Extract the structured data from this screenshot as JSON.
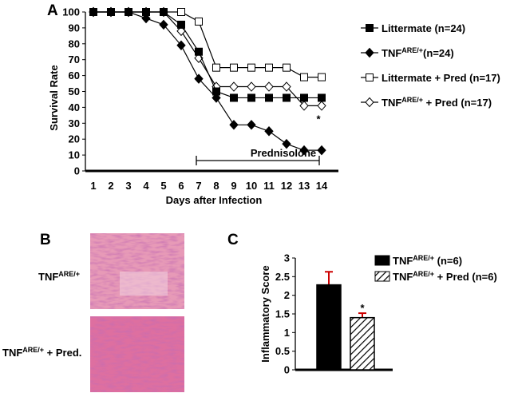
{
  "panels": {
    "a": "A",
    "b": "B",
    "c": "C"
  },
  "histology": {
    "label_top": "TNF",
    "label_top_sup": "ARE/+",
    "label_bottom": "TNF",
    "label_bottom_sup": "ARE/+",
    "label_bottom_suffix": " + Pred."
  },
  "chart_data": [
    {
      "type": "line",
      "title": "",
      "xlabel": "Days after Infection",
      "ylabel": "Survival Rate",
      "xlim": [
        1,
        14
      ],
      "ylim": [
        0,
        100
      ],
      "x": [
        1,
        2,
        3,
        4,
        5,
        6,
        7,
        8,
        9,
        10,
        11,
        12,
        13,
        14
      ],
      "x_ticks": [
        "1",
        "2",
        "3",
        "4",
        "5",
        "6",
        "7",
        "8",
        "9",
        "10",
        "11",
        "12",
        "13",
        "14"
      ],
      "y_ticks": [
        "0",
        "10",
        "20",
        "30",
        "40",
        "50",
        "60",
        "70",
        "80",
        "90",
        "100"
      ],
      "legend_position": "right",
      "series": [
        {
          "name": "Littermate (n=24)",
          "name_main": "Littermate (n=24)",
          "name_sup": "",
          "name_rest": "",
          "marker": "filled-square",
          "values": [
            100,
            100,
            100,
            100,
            100,
            92,
            75,
            50,
            46,
            46,
            46,
            46,
            46,
            46
          ]
        },
        {
          "name": "TNFARE/+(n=24)",
          "name_main": "TNF",
          "name_sup": "ARE/+",
          "name_rest": "(n=24)",
          "marker": "filled-diamond",
          "values": [
            100,
            100,
            100,
            96,
            92,
            79,
            58,
            46,
            29,
            29,
            25,
            17,
            13,
            13
          ]
        },
        {
          "name": "Littermate + Pred (n=17)",
          "name_main": "Littermate + Pred (n=17)",
          "name_sup": "",
          "name_rest": "",
          "marker": "open-square",
          "values": [
            100,
            100,
            100,
            100,
            100,
            100,
            94,
            65,
            65,
            65,
            65,
            65,
            59,
            59
          ]
        },
        {
          "name": "TNFARE/+ + Pred (n=17)",
          "name_main": "TNF",
          "name_sup": "ARE/+",
          "name_rest": " + Pred (n=17)",
          "marker": "open-diamond",
          "values": [
            100,
            100,
            100,
            100,
            100,
            88,
            71,
            53,
            53,
            53,
            53,
            53,
            41,
            41
          ]
        }
      ],
      "annotations": [
        {
          "text": "Prednisolone",
          "from_x": 7,
          "to_x": 14
        },
        {
          "text": "*",
          "near_x": 14,
          "near_y": 35
        }
      ]
    },
    {
      "type": "bar",
      "title": "",
      "xlabel": "",
      "ylabel": "Inflammatory Score",
      "ylim": [
        0,
        3
      ],
      "y_ticks": [
        "0",
        "0.5",
        "1",
        "1.5",
        "2",
        "2.5",
        "3"
      ],
      "categories": [
        "TNFARE/+ (n=6)",
        "TNFARE/+ + Pred (n=6)"
      ],
      "legend_position": "top-right",
      "series": [
        {
          "name": "TNFARE/+ (n=6)",
          "name_main": "TNF",
          "name_sup": "ARE/+",
          "name_rest": " (n=6)",
          "fill": "solid",
          "value": 2.28,
          "error": 0.35
        },
        {
          "name": "TNFARE/+ + Pred (n=6)",
          "name_main": "TNF",
          "name_sup": "ARE/+",
          "name_rest": " + Pred (n=6)",
          "fill": "hatched",
          "value": 1.4,
          "error": 0.12
        }
      ],
      "annotations": [
        {
          "text": "*",
          "on_category": 1
        }
      ]
    }
  ]
}
